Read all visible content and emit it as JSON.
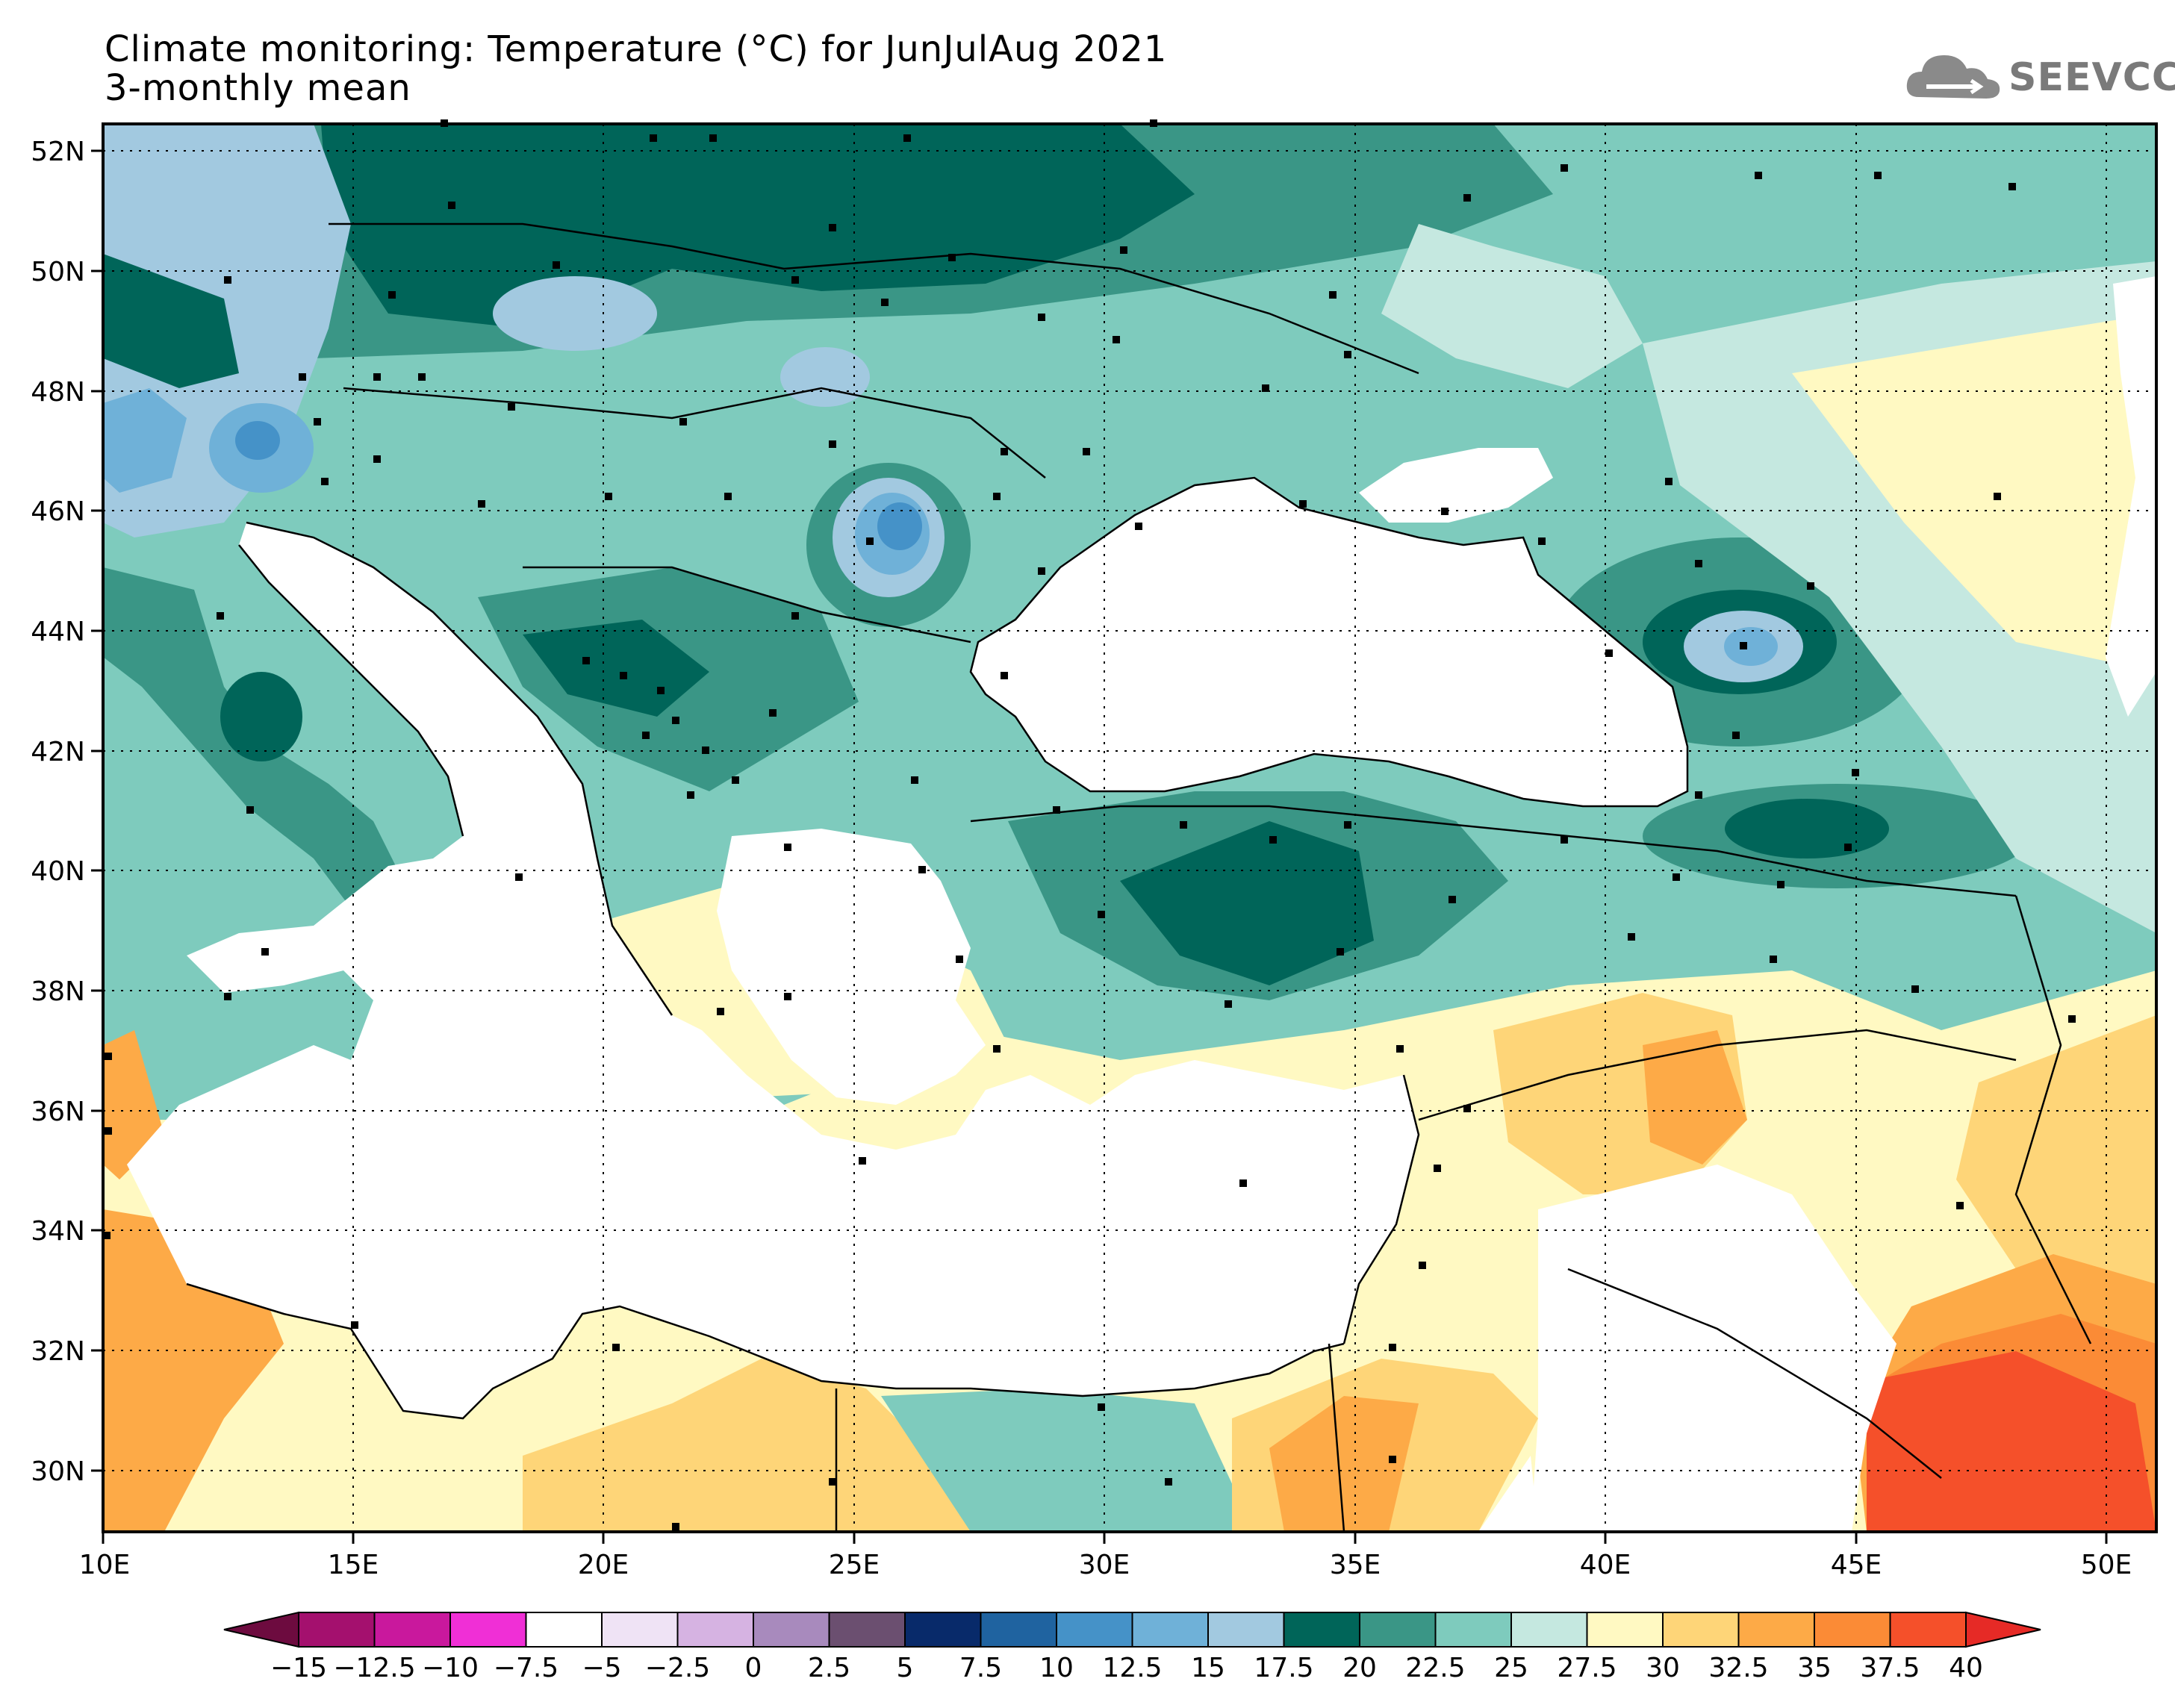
{
  "title_line1": "Climate monitoring: Temperature (°C) for JunJulAug 2021",
  "title_line2": "3-monthly mean",
  "logo": {
    "text": "SEEVCCC",
    "icon": "cloud-icon"
  },
  "map": {
    "lat_labels": [
      "52N",
      "50N",
      "48N",
      "46N",
      "44N",
      "42N",
      "40N",
      "38N",
      "36N",
      "34N",
      "32N",
      "30N"
    ],
    "lon_labels": [
      "10E",
      "15E",
      "20E",
      "25E",
      "30E",
      "35E",
      "40E",
      "45E",
      "50E"
    ],
    "lat_range": [
      29,
      52.5
    ],
    "lon_range": [
      10,
      51
    ],
    "gridlines": "dotted",
    "colors": {
      "sea": "#ffffff",
      "border": "#000000"
    }
  },
  "colorbar": {
    "ticks": [
      "-15",
      "-12.5",
      "-10",
      "-7.5",
      "-5",
      "-2.5",
      "0",
      "2.5",
      "5",
      "7.5",
      "10",
      "12.5",
      "15",
      "17.5",
      "20",
      "22.5",
      "25",
      "27.5",
      "30",
      "32.5",
      "35",
      "37.5",
      "40"
    ],
    "colors": [
      "#6d0b3f",
      "#a4106e",
      "#c9189d",
      "#f02fd6",
      "#ffffff",
      "#efe3f5",
      "#d6b3e2",
      "#a88abd",
      "#6b4f70",
      "#082a6a",
      "#1f63a0",
      "#4592c8",
      "#6fb1d8",
      "#a2c9e0",
      "#006559",
      "#3a9686",
      "#7ecbbd",
      "#c5e8e0",
      "#fff9c2",
      "#fed578",
      "#fdaa47",
      "#fb8b36",
      "#f5502a",
      "#e62a26"
    ]
  }
}
